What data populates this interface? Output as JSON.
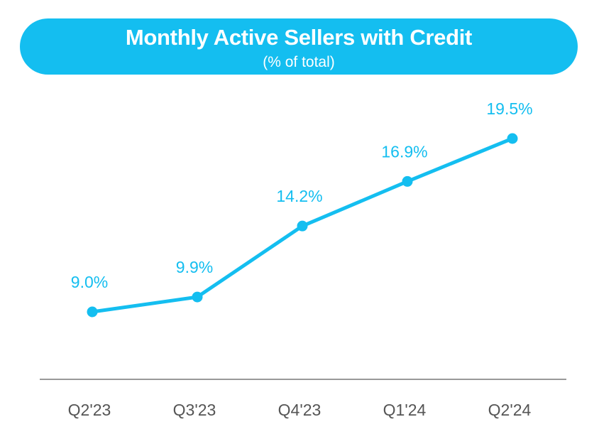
{
  "colors": {
    "accent": "#14BEF0",
    "axis": "#999999",
    "tick_text": "#555555"
  },
  "chart_data": {
    "type": "line",
    "title": "Monthly Active Sellers with Credit",
    "subtitle": "(% of total)",
    "categories": [
      "Q2'23",
      "Q3'23",
      "Q4'23",
      "Q1'24",
      "Q2'24"
    ],
    "series": [
      {
        "values": [
          9.0,
          9.9,
          14.2,
          16.9,
          19.5
        ],
        "data_labels": [
          "9.0%",
          "9.9%",
          "14.2%",
          "16.9%",
          "19.5%"
        ]
      }
    ],
    "grid": false,
    "legend": "none"
  }
}
